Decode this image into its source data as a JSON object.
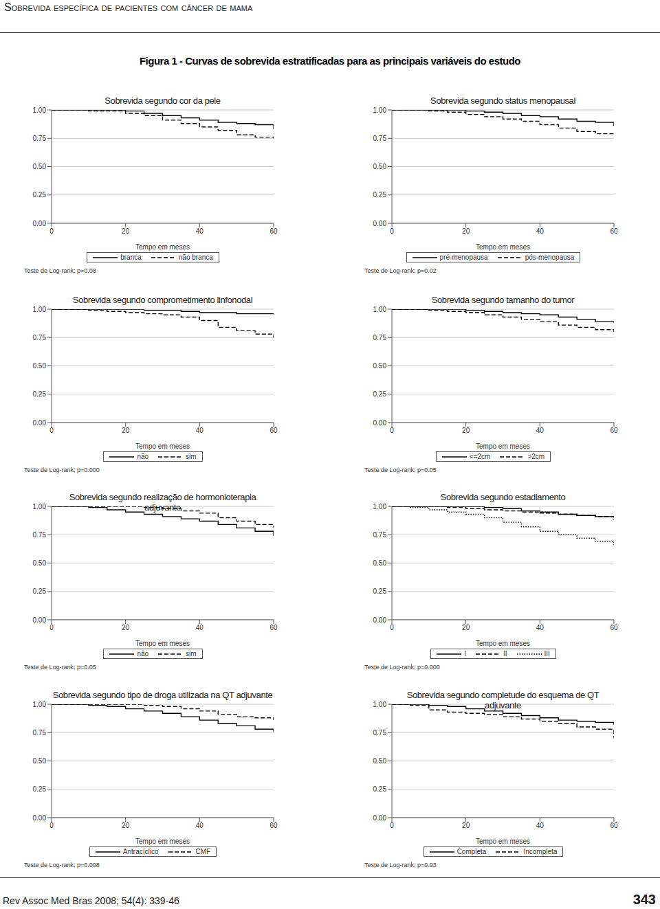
{
  "page": {
    "header": "Sobrevida específica de pacientes com câncer de mama",
    "figure_title": "Figura 1 - Curvas de sobrevida estratificadas para as principais variáveis do estudo",
    "footer": "Rev Assoc Med Bras 2008; 54(4): 339-46",
    "page_number": "343"
  },
  "chart_data": [
    {
      "type": "line",
      "title": "Sobrevida segundo cor da pele",
      "x_label": "Tempo em meses",
      "annotation": "Teste de Log-rank; p=0.08",
      "legend": "bottom",
      "grid": true,
      "x": [
        0,
        5,
        10,
        15,
        20,
        25,
        30,
        35,
        40,
        45,
        50,
        55,
        60
      ],
      "xlim": [
        0,
        60
      ],
      "xticks": [
        0,
        20,
        40,
        60
      ],
      "ylim": [
        0,
        1
      ],
      "yticks": [
        {
          "value": 0,
          "label": "0.00"
        },
        0.25,
        {
          "value": 0.5,
          "label": "0.50"
        },
        0.75,
        {
          "value": 1,
          "label": "1.00"
        }
      ],
      "series": [
        {
          "name": "branca",
          "color": "#000000",
          "line_style": "solid",
          "values": [
            1,
            1,
            1,
            1,
            0.99,
            0.97,
            0.95,
            0.93,
            0.91,
            0.89,
            0.88,
            0.87,
            0.83
          ]
        },
        {
          "name": "não branca",
          "color": "#000000",
          "line_style": "dashed",
          "values": [
            1,
            1,
            0.99,
            0.99,
            0.97,
            0.95,
            0.91,
            0.88,
            0.85,
            0.82,
            0.78,
            0.76,
            0.75
          ]
        }
      ]
    },
    {
      "type": "line",
      "title": "Sobrevida segundo status menopausal",
      "x_label": "Tempo em meses",
      "annotation": "Teste de Log-rank; p=0.02",
      "legend": "bottom",
      "grid": true,
      "x": [
        0,
        5,
        10,
        15,
        20,
        25,
        30,
        35,
        40,
        45,
        50,
        55,
        60
      ],
      "xlim": [
        0,
        60
      ],
      "xticks": [
        0,
        20,
        40,
        60
      ],
      "ylim": [
        0,
        1
      ],
      "yticks": [
        {
          "value": 0,
          "label": "0.00"
        },
        0.25,
        {
          "value": 0.5,
          "label": "0.50"
        },
        0.75,
        {
          "value": 1,
          "label": "1.00"
        }
      ],
      "series": [
        {
          "name": "pré-menopausa",
          "color": "#000000",
          "line_style": "solid",
          "values": [
            1,
            1,
            1,
            1,
            0.99,
            0.98,
            0.97,
            0.95,
            0.94,
            0.92,
            0.9,
            0.89,
            0.86
          ]
        },
        {
          "name": "pós-menopausa",
          "color": "#000000",
          "line_style": "dashed",
          "values": [
            1,
            1,
            0.99,
            0.98,
            0.96,
            0.94,
            0.92,
            0.9,
            0.87,
            0.84,
            0.81,
            0.79,
            0.78
          ]
        }
      ]
    },
    {
      "type": "line",
      "title": "Sobrevida segundo comprometimento linfonodal",
      "x_label": "Tempo em meses",
      "annotation": "Teste de Log-rank; p=0.000",
      "legend": "bottom",
      "grid": true,
      "x": [
        0,
        5,
        10,
        15,
        20,
        25,
        30,
        35,
        40,
        45,
        50,
        55,
        60
      ],
      "xlim": [
        0,
        60
      ],
      "xticks": [
        0,
        20,
        40,
        60
      ],
      "ylim": [
        0,
        1
      ],
      "yticks": [
        {
          "value": 0,
          "label": "0.00"
        },
        0.25,
        {
          "value": 0.5,
          "label": "0.50"
        },
        0.75,
        {
          "value": 1,
          "label": "1.00"
        }
      ],
      "series": [
        {
          "name": "não",
          "color": "#000000",
          "line_style": "solid",
          "values": [
            1,
            1,
            1,
            1,
            1,
            0.99,
            0.99,
            0.98,
            0.97,
            0.97,
            0.96,
            0.96,
            0.96
          ]
        },
        {
          "name": "sim",
          "color": "#000000",
          "line_style": "dashed",
          "values": [
            1,
            1,
            0.99,
            0.98,
            0.97,
            0.96,
            0.95,
            0.93,
            0.9,
            0.84,
            0.81,
            0.78,
            0.75
          ]
        }
      ]
    },
    {
      "type": "line",
      "title": "Sobrevida segundo tamanho do tumor",
      "x_label": "Tempo em meses",
      "annotation": "Teste de Log-rank; p=0.05",
      "legend": "bottom",
      "grid": true,
      "x": [
        0,
        5,
        10,
        15,
        20,
        25,
        30,
        35,
        40,
        45,
        50,
        55,
        60
      ],
      "xlim": [
        0,
        60
      ],
      "xticks": [
        0,
        20,
        40,
        60
      ],
      "ylim": [
        0,
        1
      ],
      "yticks": [
        {
          "value": 0,
          "label": "0.00"
        },
        0.25,
        {
          "value": 0.5,
          "label": "0.50"
        },
        0.75,
        {
          "value": 1,
          "label": "1.00"
        }
      ],
      "series": [
        {
          "name": "<=2cm",
          "color": "#000000",
          "line_style": "solid",
          "values": [
            1,
            1,
            1,
            1,
            0.99,
            0.98,
            0.97,
            0.96,
            0.95,
            0.93,
            0.91,
            0.89,
            0.88
          ]
        },
        {
          "name": ">2cm",
          "color": "#000000",
          "line_style": "dashed",
          "values": [
            1,
            1,
            0.99,
            0.98,
            0.97,
            0.95,
            0.93,
            0.91,
            0.89,
            0.86,
            0.84,
            0.82,
            0.8
          ]
        }
      ]
    },
    {
      "type": "line",
      "title": "Sobrevida segundo realização de hormonioterapia adjuvante",
      "x_label": "Tempo em meses",
      "annotation": "Teste de Log-rank; p=0.05",
      "legend": "bottom",
      "grid": true,
      "x": [
        0,
        5,
        10,
        15,
        20,
        25,
        30,
        35,
        40,
        45,
        50,
        55,
        60
      ],
      "xlim": [
        0,
        60
      ],
      "xticks": [
        0,
        20,
        40,
        60
      ],
      "ylim": [
        0,
        1
      ],
      "yticks": [
        {
          "value": 0,
          "label": "0.00"
        },
        0.25,
        {
          "value": 0.5,
          "label": "0.50"
        },
        0.75,
        {
          "value": 1,
          "label": "1.00"
        }
      ],
      "series": [
        {
          "name": "não",
          "color": "#000000",
          "line_style": "solid",
          "values": [
            1,
            1,
            0.99,
            0.97,
            0.95,
            0.93,
            0.91,
            0.89,
            0.87,
            0.84,
            0.81,
            0.78,
            0.74
          ]
        },
        {
          "name": "sim",
          "color": "#000000",
          "line_style": "dashed",
          "values": [
            1,
            1,
            1,
            1,
            1,
            0.99,
            0.98,
            0.96,
            0.94,
            0.9,
            0.87,
            0.84,
            0.81
          ]
        }
      ]
    },
    {
      "type": "line",
      "title": "Sobrevida segundo estadiamento",
      "x_label": "Tempo em meses",
      "annotation": "Teste de Log-rank; p=0.000",
      "legend": "bottom",
      "grid": true,
      "x": [
        0,
        5,
        10,
        15,
        20,
        25,
        30,
        35,
        40,
        45,
        50,
        55,
        60
      ],
      "xlim": [
        0,
        60
      ],
      "xticks": [
        0,
        20,
        40,
        60
      ],
      "ylim": [
        0,
        1
      ],
      "yticks": [
        {
          "value": 0,
          "label": "0.00"
        },
        0.25,
        {
          "value": 0.5,
          "label": "0.50"
        },
        0.75,
        {
          "value": 1,
          "label": "1.00"
        }
      ],
      "series": [
        {
          "name": "I",
          "color": "#000000",
          "line_style": "solid",
          "values": [
            1,
            1,
            1,
            1,
            1,
            0.99,
            0.98,
            0.96,
            0.95,
            0.93,
            0.92,
            0.91,
            0.9
          ]
        },
        {
          "name": "II",
          "color": "#000000",
          "line_style": "dashed",
          "values": [
            1,
            1,
            1,
            0.99,
            0.98,
            0.97,
            0.96,
            0.95,
            0.94,
            0.93,
            0.92,
            0.91,
            0.88
          ]
        },
        {
          "name": "III",
          "color": "#000000",
          "line_style": "dotted",
          "values": [
            1,
            0.99,
            0.97,
            0.95,
            0.93,
            0.9,
            0.86,
            0.82,
            0.78,
            0.75,
            0.72,
            0.69,
            0.66
          ]
        }
      ]
    },
    {
      "type": "line",
      "title": "Sobrevida segundo tipo de droga utilizada na QT adjuvante",
      "x_label": "Tempo em meses",
      "annotation": "Teste de Log-rank; p=0.008",
      "legend": "bottom",
      "grid": true,
      "x": [
        0,
        5,
        10,
        15,
        20,
        25,
        30,
        35,
        40,
        45,
        50,
        55,
        60
      ],
      "xlim": [
        0,
        60
      ],
      "xticks": [
        0,
        20,
        40,
        60
      ],
      "ylim": [
        0,
        1
      ],
      "yticks": [
        {
          "value": 0,
          "label": "0.00"
        },
        0.25,
        {
          "value": 0.5,
          "label": "0.50"
        },
        0.75,
        {
          "value": 1,
          "label": "1.00"
        }
      ],
      "series": [
        {
          "name": "Antracíclico",
          "color": "#000000",
          "line_style": "solid",
          "values": [
            1,
            1,
            0.99,
            0.98,
            0.96,
            0.94,
            0.92,
            0.89,
            0.86,
            0.83,
            0.81,
            0.78,
            0.76
          ]
        },
        {
          "name": "CMF",
          "color": "#000000",
          "line_style": "dashed",
          "values": [
            1,
            1,
            1,
            1,
            1,
            0.99,
            0.98,
            0.96,
            0.94,
            0.91,
            0.89,
            0.88,
            0.86
          ]
        }
      ]
    },
    {
      "type": "line",
      "title": "Sobrevida segundo completude do esquema de QT adjuvante",
      "x_label": "Tempo em meses",
      "annotation": "Teste de Log-rank; p=0.03",
      "legend": "bottom",
      "grid": true,
      "x": [
        0,
        5,
        10,
        15,
        20,
        25,
        30,
        35,
        40,
        45,
        50,
        55,
        60
      ],
      "xlim": [
        0,
        60
      ],
      "xticks": [
        0,
        20,
        40,
        60
      ],
      "ylim": [
        0,
        1
      ],
      "yticks": [
        {
          "value": 0,
          "label": "0.00"
        },
        0.25,
        {
          "value": 0.5,
          "label": "0.50"
        },
        0.75,
        {
          "value": 1,
          "label": "1.00"
        }
      ],
      "series": [
        {
          "name": "Completa",
          "color": "#000000",
          "line_style": "solid",
          "values": [
            1,
            1,
            0.99,
            0.98,
            0.96,
            0.94,
            0.92,
            0.9,
            0.88,
            0.86,
            0.85,
            0.84,
            0.82
          ]
        },
        {
          "name": "Incompleta",
          "color": "#000000",
          "line_style": "dashed",
          "values": [
            1,
            0.99,
            0.95,
            0.93,
            0.92,
            0.91,
            0.89,
            0.87,
            0.85,
            0.83,
            0.8,
            0.78,
            0.7
          ]
        }
      ]
    }
  ]
}
